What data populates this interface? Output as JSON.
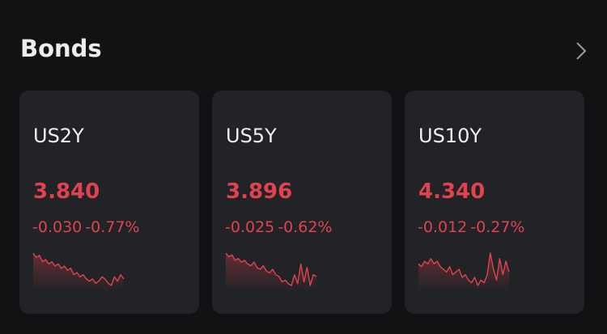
{
  "header": {
    "title": "Bonds"
  },
  "cards": [
    {
      "name": "US2Y",
      "price": "3.840",
      "change": "-0.030",
      "change_percent": "-0.77%",
      "sparkline": [
        3.9,
        3.89,
        3.895,
        3.88,
        3.885,
        3.875,
        3.88,
        3.87,
        3.875,
        3.865,
        3.87,
        3.86,
        3.865,
        3.85,
        3.855,
        3.845,
        3.85,
        3.84,
        3.835,
        3.84,
        3.83,
        3.835,
        3.845,
        3.84,
        3.83,
        3.825,
        3.845,
        3.835,
        3.85,
        3.84
      ]
    },
    {
      "name": "US5Y",
      "price": "3.896",
      "change": "-0.025",
      "change_percent": "-0.62%",
      "sparkline": [
        3.96,
        3.95,
        3.955,
        3.94,
        3.945,
        3.935,
        3.94,
        3.93,
        3.925,
        3.935,
        3.92,
        3.915,
        3.925,
        3.91,
        3.905,
        3.915,
        3.9,
        3.895,
        3.88,
        3.885,
        3.875,
        3.87,
        3.9,
        3.875,
        3.93,
        3.88,
        3.92,
        3.87,
        3.9,
        3.895
      ]
    },
    {
      "name": "US10Y",
      "price": "4.340",
      "change": "-0.012",
      "change_percent": "-0.27%",
      "sparkline": [
        4.34,
        4.335,
        4.345,
        4.34,
        4.35,
        4.34,
        4.345,
        4.335,
        4.33,
        4.325,
        4.335,
        4.32,
        4.325,
        4.33,
        4.315,
        4.32,
        4.31,
        4.305,
        4.315,
        4.3,
        4.31,
        4.305,
        4.32,
        4.36,
        4.33,
        4.31,
        4.35,
        4.32,
        4.345,
        4.325
      ]
    }
  ]
}
